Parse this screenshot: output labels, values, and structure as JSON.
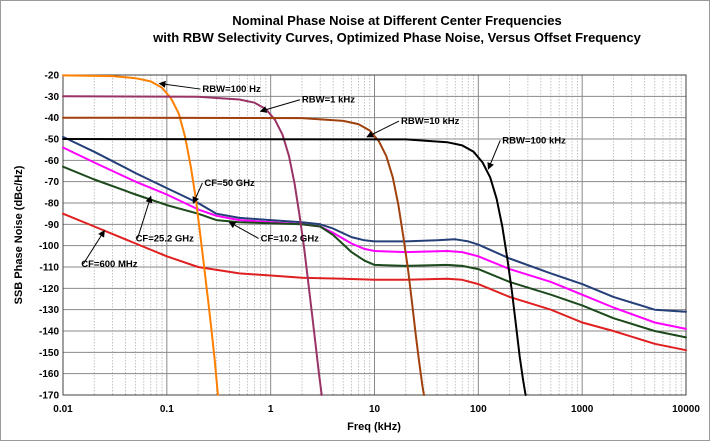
{
  "chart_data": {
    "type": "line",
    "title_lines": [
      "Nominal Phase Noise at Different Center Frequencies",
      "with RBW Selectivity Curves, Optimized Phase Noise, Versus Offset Frequency"
    ],
    "xlabel": "Freq (kHz)",
    "ylabel": "SSB Phase Noise (dBc/Hz)",
    "x_scale": "log",
    "xlim": [
      0.01,
      10000
    ],
    "ylim": [
      -170,
      -20
    ],
    "x_ticks": [
      0.01,
      0.1,
      1,
      10,
      100,
      1000,
      10000
    ],
    "x_tick_labels": [
      "0.01",
      "0.1",
      "1",
      "10",
      "100",
      "1000",
      "10000"
    ],
    "y_ticks": [
      -20,
      -30,
      -40,
      -50,
      -60,
      -70,
      -80,
      -90,
      -100,
      -110,
      -120,
      -130,
      -140,
      -150,
      -160,
      -170
    ],
    "y_tick_labels": [
      "-20",
      "-30",
      "-40",
      "-50",
      "-60",
      "-70",
      "-80",
      "-90",
      "-100",
      "-110",
      "-120",
      "-130",
      "-140",
      "-150",
      "-160",
      "-170"
    ],
    "grid": true,
    "legend": "none",
    "series": [
      {
        "key": "cf50",
        "color": "#243f78",
        "points": [
          [
            0.01,
            -49
          ],
          [
            0.02,
            -56
          ],
          [
            0.05,
            -66
          ],
          [
            0.1,
            -73
          ],
          [
            0.2,
            -80
          ],
          [
            0.3,
            -85
          ],
          [
            0.5,
            -87
          ],
          [
            1,
            -88
          ],
          [
            2,
            -89
          ],
          [
            3,
            -90
          ],
          [
            4,
            -92
          ],
          [
            6,
            -96
          ],
          [
            8,
            -97.5
          ],
          [
            10,
            -98
          ],
          [
            20,
            -98
          ],
          [
            40,
            -97.5
          ],
          [
            60,
            -97
          ],
          [
            80,
            -98
          ],
          [
            100,
            -99.5
          ],
          [
            200,
            -106
          ],
          [
            500,
            -113
          ],
          [
            1000,
            -118
          ],
          [
            2000,
            -124
          ],
          [
            5000,
            -130
          ],
          [
            10000,
            -131
          ]
        ]
      },
      {
        "key": "cf25",
        "color": "#ff00ff",
        "points": [
          [
            0.01,
            -54
          ],
          [
            0.02,
            -61
          ],
          [
            0.05,
            -70
          ],
          [
            0.1,
            -76
          ],
          [
            0.2,
            -83
          ],
          [
            0.3,
            -86
          ],
          [
            0.5,
            -88
          ],
          [
            1,
            -89
          ],
          [
            2,
            -90
          ],
          [
            3,
            -91
          ],
          [
            4,
            -94
          ],
          [
            6,
            -99
          ],
          [
            8,
            -101.5
          ],
          [
            10,
            -102.5
          ],
          [
            20,
            -103
          ],
          [
            50,
            -102.5
          ],
          [
            70,
            -103
          ],
          [
            100,
            -105
          ],
          [
            200,
            -111
          ],
          [
            500,
            -117
          ],
          [
            1000,
            -123
          ],
          [
            2000,
            -129
          ],
          [
            5000,
            -136
          ],
          [
            10000,
            -139
          ]
        ]
      },
      {
        "key": "cf10",
        "color": "#1c4a1c",
        "points": [
          [
            0.01,
            -63
          ],
          [
            0.02,
            -69
          ],
          [
            0.05,
            -76
          ],
          [
            0.1,
            -81
          ],
          [
            0.2,
            -85
          ],
          [
            0.3,
            -88
          ],
          [
            0.5,
            -89
          ],
          [
            1,
            -89.5
          ],
          [
            2,
            -90
          ],
          [
            3,
            -91
          ],
          [
            4,
            -95
          ],
          [
            6,
            -103
          ],
          [
            8,
            -107
          ],
          [
            10,
            -109
          ],
          [
            20,
            -109.5
          ],
          [
            50,
            -109
          ],
          [
            70,
            -109.5
          ],
          [
            100,
            -111
          ],
          [
            200,
            -117
          ],
          [
            500,
            -123
          ],
          [
            1000,
            -128
          ],
          [
            2000,
            -134
          ],
          [
            5000,
            -140
          ],
          [
            10000,
            -143
          ]
        ]
      },
      {
        "key": "cf600",
        "color": "#e02020",
        "points": [
          [
            0.01,
            -85
          ],
          [
            0.02,
            -91
          ],
          [
            0.05,
            -99
          ],
          [
            0.1,
            -105
          ],
          [
            0.2,
            -110
          ],
          [
            0.5,
            -113
          ],
          [
            1,
            -114
          ],
          [
            2,
            -115
          ],
          [
            5,
            -115.5
          ],
          [
            10,
            -116
          ],
          [
            20,
            -116
          ],
          [
            50,
            -115.5
          ],
          [
            70,
            -116
          ],
          [
            100,
            -118
          ],
          [
            200,
            -124
          ],
          [
            500,
            -130
          ],
          [
            1000,
            -136
          ],
          [
            2000,
            -140
          ],
          [
            5000,
            -146
          ],
          [
            10000,
            -149
          ]
        ]
      },
      {
        "key": "rbw100hz",
        "color": "#ff8000",
        "points": [
          [
            0.01,
            -20.2
          ],
          [
            0.03,
            -20.5
          ],
          [
            0.05,
            -21.5
          ],
          [
            0.07,
            -23
          ],
          [
            0.09,
            -26
          ],
          [
            0.11,
            -31
          ],
          [
            0.13,
            -38
          ],
          [
            0.15,
            -49
          ],
          [
            0.17,
            -63
          ],
          [
            0.19,
            -78
          ],
          [
            0.21,
            -95
          ],
          [
            0.23,
            -111
          ],
          [
            0.25,
            -126
          ],
          [
            0.27,
            -140
          ],
          [
            0.29,
            -154
          ],
          [
            0.31,
            -170
          ]
        ]
      },
      {
        "key": "rbw1khz",
        "color": "#993366",
        "points": [
          [
            0.01,
            -30
          ],
          [
            0.2,
            -30.2
          ],
          [
            0.5,
            -31.5
          ],
          [
            0.7,
            -33
          ],
          [
            0.9,
            -36
          ],
          [
            1.1,
            -41
          ],
          [
            1.3,
            -48
          ],
          [
            1.5,
            -58
          ],
          [
            1.7,
            -71
          ],
          [
            1.9,
            -86
          ],
          [
            2.1,
            -101
          ],
          [
            2.3,
            -117
          ],
          [
            2.5,
            -132
          ],
          [
            2.7,
            -146
          ],
          [
            2.9,
            -159
          ],
          [
            3.1,
            -170
          ]
        ]
      },
      {
        "key": "rbw10khz",
        "color": "#a0400c",
        "points": [
          [
            0.01,
            -40
          ],
          [
            2,
            -40.2
          ],
          [
            5,
            -41.5
          ],
          [
            7,
            -43
          ],
          [
            9,
            -46
          ],
          [
            11,
            -51
          ],
          [
            13,
            -58
          ],
          [
            15,
            -68
          ],
          [
            17,
            -81
          ],
          [
            19,
            -96
          ],
          [
            21,
            -111
          ],
          [
            23,
            -127
          ],
          [
            25,
            -142
          ],
          [
            27,
            -155
          ],
          [
            29,
            -166
          ],
          [
            30,
            -170
          ]
        ]
      },
      {
        "key": "rbw100khz",
        "color": "#000000",
        "points": [
          [
            0.01,
            -50
          ],
          [
            20,
            -50.2
          ],
          [
            50,
            -51.5
          ],
          [
            70,
            -53
          ],
          [
            90,
            -56
          ],
          [
            110,
            -61
          ],
          [
            130,
            -68
          ],
          [
            150,
            -78
          ],
          [
            170,
            -91
          ],
          [
            190,
            -106
          ],
          [
            210,
            -121
          ],
          [
            230,
            -137
          ],
          [
            250,
            -152
          ],
          [
            270,
            -163
          ],
          [
            285,
            -170
          ]
        ]
      }
    ],
    "annotations": [
      {
        "text": "RBW=100 Hz",
        "x": 0.22,
        "y": -28,
        "ax": 0.085,
        "ay": -24
      },
      {
        "text": "RBW=1 kHz",
        "x": 2.0,
        "y": -33,
        "ax": 0.8,
        "ay": -37
      },
      {
        "text": "RBW=10 kHz",
        "x": 18,
        "y": -43,
        "ax": 8.5,
        "ay": -49
      },
      {
        "text": "RBW=100 kHz",
        "x": 170,
        "y": -52,
        "ax": 125,
        "ay": -64
      },
      {
        "text": "CF=50 GHz",
        "x": 0.23,
        "y": -72,
        "ax": 0.18,
        "ay": -80
      },
      {
        "text": "CF=25.2 GHz",
        "x": 0.05,
        "y": -98,
        "ax": 0.07,
        "ay": -77
      },
      {
        "text": "CF=10.2 GHz",
        "x": 0.8,
        "y": -98,
        "ax": 0.4,
        "ay": -89
      },
      {
        "text": "CF=600 MHz",
        "x": 0.015,
        "y": -110,
        "ax": 0.025,
        "ay": -93
      }
    ]
  }
}
